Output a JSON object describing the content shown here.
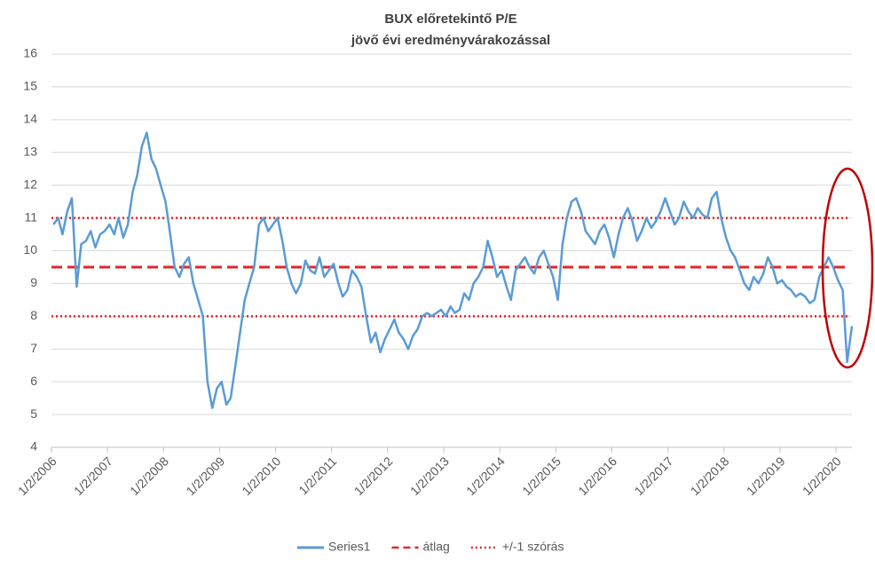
{
  "chart_data": {
    "type": "line",
    "title": [
      "BUX előretekintő P/E",
      "jövő évi eredményvárakozással"
    ],
    "x": [
      "2006-01-15",
      "2006-02-15",
      "2006-03-15",
      "2006-04-15",
      "2006-05-15",
      "2006-06-15",
      "2006-07-15",
      "2006-08-15",
      "2006-09-15",
      "2006-10-15",
      "2006-11-15",
      "2006-12-15",
      "2007-01-15",
      "2007-02-15",
      "2007-03-15",
      "2007-04-15",
      "2007-05-15",
      "2007-06-15",
      "2007-07-15",
      "2007-08-15",
      "2007-09-15",
      "2007-10-15",
      "2007-11-15",
      "2007-12-15",
      "2008-01-15",
      "2008-02-15",
      "2008-03-15",
      "2008-04-15",
      "2008-05-15",
      "2008-06-15",
      "2008-07-15",
      "2008-08-15",
      "2008-09-15",
      "2008-10-15",
      "2008-11-15",
      "2008-12-15",
      "2009-01-15",
      "2009-02-15",
      "2009-03-15",
      "2009-04-15",
      "2009-05-15",
      "2009-06-15",
      "2009-07-15",
      "2009-08-15",
      "2009-09-15",
      "2009-10-15",
      "2009-11-15",
      "2009-12-15",
      "2010-01-15",
      "2010-02-15",
      "2010-03-15",
      "2010-04-15",
      "2010-05-15",
      "2010-06-15",
      "2010-07-15",
      "2010-08-15",
      "2010-09-15",
      "2010-10-15",
      "2010-11-15",
      "2010-12-15",
      "2011-01-15",
      "2011-02-15",
      "2011-03-15",
      "2011-04-15",
      "2011-05-15",
      "2011-06-15",
      "2011-07-15",
      "2011-08-15",
      "2011-09-15",
      "2011-10-15",
      "2011-11-15",
      "2011-12-15",
      "2012-01-15",
      "2012-02-15",
      "2012-03-15",
      "2012-04-15",
      "2012-05-15",
      "2012-06-15",
      "2012-07-15",
      "2012-08-15",
      "2012-09-15",
      "2012-10-15",
      "2012-11-15",
      "2012-12-15",
      "2013-01-15",
      "2013-02-15",
      "2013-03-15",
      "2013-04-15",
      "2013-05-15",
      "2013-06-15",
      "2013-07-15",
      "2013-08-15",
      "2013-09-15",
      "2013-10-15",
      "2013-11-15",
      "2013-12-15",
      "2014-01-15",
      "2014-02-15",
      "2014-03-15",
      "2014-04-15",
      "2014-05-15",
      "2014-06-15",
      "2014-07-15",
      "2014-08-15",
      "2014-09-15",
      "2014-10-15",
      "2014-11-15",
      "2014-12-15",
      "2015-01-15",
      "2015-02-15",
      "2015-03-15",
      "2015-04-15",
      "2015-05-15",
      "2015-06-15",
      "2015-07-15",
      "2015-08-15",
      "2015-09-15",
      "2015-10-15",
      "2015-11-15",
      "2015-12-15",
      "2016-01-15",
      "2016-02-15",
      "2016-03-15",
      "2016-04-15",
      "2016-05-15",
      "2016-06-15",
      "2016-07-15",
      "2016-08-15",
      "2016-09-15",
      "2016-10-15",
      "2016-11-15",
      "2016-12-15",
      "2017-01-15",
      "2017-02-15",
      "2017-03-15",
      "2017-04-15",
      "2017-05-15",
      "2017-06-15",
      "2017-07-15",
      "2017-08-15",
      "2017-09-15",
      "2017-10-15",
      "2017-11-15",
      "2017-12-15",
      "2018-01-15",
      "2018-02-15",
      "2018-03-15",
      "2018-04-15",
      "2018-05-15",
      "2018-06-15",
      "2018-07-15",
      "2018-08-15",
      "2018-09-15",
      "2018-10-15",
      "2018-11-15",
      "2018-12-15",
      "2019-01-15",
      "2019-02-15",
      "2019-03-15",
      "2019-04-15",
      "2019-05-15",
      "2019-06-15",
      "2019-07-15",
      "2019-08-15",
      "2019-09-15",
      "2019-10-15",
      "2019-11-15",
      "2019-12-15",
      "2020-01-15",
      "2020-02-15",
      "2020-03-15",
      "2020-04-15"
    ],
    "series": [
      {
        "name": "Series1",
        "color": "#5b9bd5",
        "values": [
          10.8,
          11.0,
          10.5,
          11.2,
          11.6,
          8.9,
          10.2,
          10.3,
          10.6,
          10.1,
          10.5,
          10.6,
          10.8,
          10.5,
          11.0,
          10.4,
          10.8,
          11.8,
          12.3,
          13.2,
          13.6,
          12.8,
          12.5,
          12.0,
          11.5,
          10.5,
          9.5,
          9.2,
          9.6,
          9.8,
          9.0,
          8.5,
          8.0,
          6.0,
          5.2,
          5.8,
          6.0,
          5.3,
          5.5,
          6.5,
          7.5,
          8.5,
          9.0,
          9.5,
          10.8,
          11.0,
          10.6,
          10.8,
          11.0,
          10.3,
          9.5,
          9.0,
          8.7,
          9.0,
          9.7,
          9.4,
          9.3,
          9.8,
          9.2,
          9.4,
          9.6,
          9.0,
          8.6,
          8.8,
          9.4,
          9.2,
          8.9,
          8.0,
          7.2,
          7.5,
          6.9,
          7.3,
          7.6,
          7.9,
          7.5,
          7.3,
          7.0,
          7.4,
          7.6,
          8.0,
          8.1,
          8.0,
          8.1,
          8.2,
          8.0,
          8.3,
          8.1,
          8.2,
          8.7,
          8.5,
          9.0,
          9.2,
          9.5,
          10.3,
          9.8,
          9.2,
          9.4,
          8.9,
          8.5,
          9.4,
          9.6,
          9.8,
          9.5,
          9.3,
          9.8,
          10.0,
          9.6,
          9.2,
          8.5,
          10.2,
          11.0,
          11.5,
          11.6,
          11.2,
          10.6,
          10.4,
          10.2,
          10.6,
          10.8,
          10.4,
          9.8,
          10.5,
          11.0,
          11.3,
          10.9,
          10.3,
          10.6,
          11.0,
          10.7,
          10.9,
          11.2,
          11.6,
          11.2,
          10.8,
          11.0,
          11.5,
          11.2,
          11.0,
          11.3,
          11.1,
          11.0,
          11.6,
          11.8,
          11.0,
          10.4,
          10.0,
          9.8,
          9.4,
          9.0,
          8.8,
          9.2,
          9.0,
          9.3,
          9.8,
          9.5,
          9.0,
          9.1,
          8.9,
          8.8,
          8.6,
          8.7,
          8.6,
          8.4,
          8.5,
          9.2,
          9.5,
          9.8,
          9.5,
          9.1,
          8.8,
          6.6,
          7.7
        ]
      }
    ],
    "reference_lines": [
      {
        "name": "átlag",
        "color": "#e32626",
        "style": "dashed",
        "values": [
          9.5
        ]
      },
      {
        "name": "+/-1 szórás",
        "color": "#e32626",
        "style": "dotted",
        "values": [
          8,
          11
        ]
      }
    ],
    "xlim": [
      "2006-01-02",
      "2020-04-15"
    ],
    "xticks": [
      {
        "value": "2006-01-02",
        "label": "1/2/2006"
      },
      {
        "value": "2007-01-02",
        "label": "1/2/2007"
      },
      {
        "value": "2008-01-02",
        "label": "1/2/2008"
      },
      {
        "value": "2009-01-02",
        "label": "1/2/2009"
      },
      {
        "value": "2010-01-02",
        "label": "1/2/2010"
      },
      {
        "value": "2011-01-02",
        "label": "1/2/2011"
      },
      {
        "value": "2012-01-02",
        "label": "1/2/2012"
      },
      {
        "value": "2013-01-02",
        "label": "1/2/2013"
      },
      {
        "value": "2014-01-02",
        "label": "1/2/2014"
      },
      {
        "value": "2015-01-02",
        "label": "1/2/2015"
      },
      {
        "value": "2016-01-02",
        "label": "1/2/2016"
      },
      {
        "value": "2017-01-02",
        "label": "1/2/2017"
      },
      {
        "value": "2018-01-02",
        "label": "1/2/2018"
      },
      {
        "value": "2019-01-02",
        "label": "1/2/2019"
      },
      {
        "value": "2020-01-02",
        "label": "1/2/2020"
      }
    ],
    "ylim": [
      4,
      16
    ],
    "yticks": [
      4,
      5,
      6,
      7,
      8,
      9,
      10,
      11,
      12,
      13,
      14,
      15,
      16
    ],
    "grid": true,
    "legend": "bottom"
  }
}
